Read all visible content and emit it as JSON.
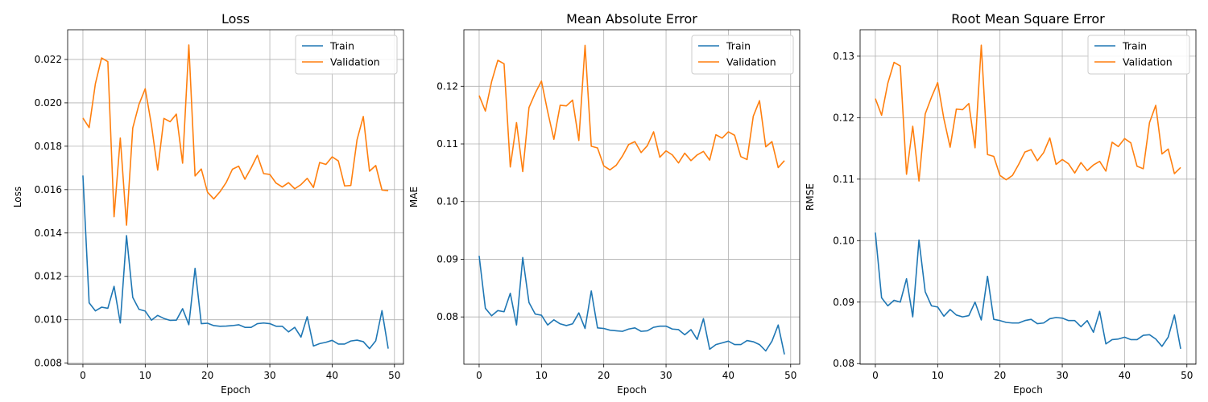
{
  "chart_data": [
    {
      "type": "line",
      "title": "Loss",
      "xlabel": "Epoch",
      "ylabel": "Loss",
      "xlim": [
        -2.45,
        51.45
      ],
      "ylim": [
        0.00795,
        0.02337
      ],
      "xticks": [
        0,
        10,
        20,
        30,
        40,
        50
      ],
      "yticks": [
        0.008,
        0.01,
        0.012,
        0.014,
        0.016,
        0.018,
        0.02,
        0.022
      ],
      "ytick_labels": [
        "0.008",
        "0.010",
        "0.012",
        "0.014",
        "0.016",
        "0.018",
        "0.020",
        "0.022"
      ],
      "grid": true,
      "legend": "top-right",
      "series": [
        {
          "name": "Train",
          "color": "#1f77b4",
          "values": [
            0.01665,
            0.01078,
            0.01041,
            0.01058,
            0.01053,
            0.01154,
            0.00985,
            0.01388,
            0.01103,
            0.01048,
            0.0104,
            0.00998,
            0.0102,
            0.01006,
            0.00997,
            0.00998,
            0.01051,
            0.00977,
            0.01237,
            0.00982,
            0.00984,
            0.00973,
            0.0097,
            0.00971,
            0.00973,
            0.00977,
            0.00965,
            0.00965,
            0.00982,
            0.00985,
            0.00982,
            0.0097,
            0.0097,
            0.00944,
            0.00965,
            0.0092,
            0.01014,
            0.00879,
            0.0089,
            0.00896,
            0.00905,
            0.00888,
            0.00888,
            0.00902,
            0.00906,
            0.00899,
            0.00867,
            0.00903,
            0.01042,
            0.00867
          ]
        },
        {
          "name": "Validation",
          "color": "#ff7f0e",
          "values": [
            0.0193,
            0.01886,
            0.02088,
            0.02207,
            0.0219,
            0.01475,
            0.01838,
            0.01436,
            0.01884,
            0.01993,
            0.02065,
            0.01898,
            0.0169,
            0.01928,
            0.01913,
            0.01948,
            0.01722,
            0.02267,
            0.01663,
            0.01695,
            0.01588,
            0.01557,
            0.0159,
            0.01633,
            0.01694,
            0.01708,
            0.01648,
            0.017,
            0.01758,
            0.01674,
            0.0167,
            0.0163,
            0.01612,
            0.01632,
            0.01604,
            0.01623,
            0.01652,
            0.0161,
            0.01725,
            0.01716,
            0.01751,
            0.01732,
            0.01617,
            0.01619,
            0.0183,
            0.01937,
            0.01685,
            0.01711,
            0.01598,
            0.01595
          ]
        }
      ]
    },
    {
      "type": "line",
      "title": "Mean Absolute Error",
      "xlabel": "Epoch",
      "ylabel": "MAE",
      "xlim": [
        -2.45,
        51.45
      ],
      "ylim": [
        0.0718,
        0.1298
      ],
      "xticks": [
        0,
        10,
        20,
        30,
        40,
        50
      ],
      "yticks": [
        0.08,
        0.09,
        0.1,
        0.11,
        0.12
      ],
      "ytick_labels": [
        "0.08",
        "0.09",
        "0.10",
        "0.11",
        "0.12"
      ],
      "grid": true,
      "legend": "top-right",
      "series": [
        {
          "name": "Train",
          "color": "#1f77b4",
          "values": [
            0.0906,
            0.0815,
            0.0802,
            0.0811,
            0.0809,
            0.0841,
            0.0786,
            0.0903,
            0.0825,
            0.0805,
            0.0803,
            0.0786,
            0.0795,
            0.0788,
            0.0785,
            0.0788,
            0.0807,
            0.078,
            0.0845,
            0.0781,
            0.078,
            0.0777,
            0.0776,
            0.0775,
            0.0779,
            0.0781,
            0.0775,
            0.0776,
            0.0782,
            0.0784,
            0.0784,
            0.0779,
            0.0778,
            0.0769,
            0.0778,
            0.0761,
            0.0797,
            0.0744,
            0.0752,
            0.0755,
            0.0758,
            0.0752,
            0.0752,
            0.0759,
            0.0757,
            0.0752,
            0.0741,
            0.0758,
            0.0786,
            0.0735
          ]
        },
        {
          "name": "Validation",
          "color": "#ff7f0e",
          "values": [
            0.1184,
            0.1157,
            0.1208,
            0.1245,
            0.1239,
            0.106,
            0.1137,
            0.1052,
            0.1163,
            0.1188,
            0.1209,
            0.1156,
            0.1108,
            0.1167,
            0.1166,
            0.1176,
            0.1106,
            0.1271,
            0.1096,
            0.1093,
            0.1062,
            0.1055,
            0.1063,
            0.1079,
            0.1099,
            0.1104,
            0.1085,
            0.1097,
            0.1121,
            0.1077,
            0.1088,
            0.1081,
            0.1067,
            0.1084,
            0.1071,
            0.1081,
            0.1087,
            0.1072,
            0.1116,
            0.111,
            0.1121,
            0.1115,
            0.1078,
            0.1073,
            0.1148,
            0.1175,
            0.1095,
            0.1104,
            0.1059,
            0.1071
          ]
        }
      ]
    },
    {
      "type": "line",
      "title": "Root Mean Square Error",
      "xlabel": "Epoch",
      "ylabel": "RMSE",
      "xlim": [
        -2.45,
        51.45
      ],
      "ylim": [
        0.0799,
        0.1343
      ],
      "xticks": [
        0,
        10,
        20,
        30,
        40,
        50
      ],
      "yticks": [
        0.08,
        0.09,
        0.1,
        0.11,
        0.12,
        0.13
      ],
      "ytick_labels": [
        "0.08",
        "0.09",
        "0.10",
        "0.11",
        "0.12",
        "0.13"
      ],
      "grid": true,
      "legend": "top-right",
      "series": [
        {
          "name": "Train",
          "color": "#1f77b4",
          "values": [
            0.1013,
            0.0907,
            0.0894,
            0.0903,
            0.09,
            0.0938,
            0.0876,
            0.1001,
            0.0917,
            0.0894,
            0.0892,
            0.0877,
            0.0888,
            0.0879,
            0.0876,
            0.0878,
            0.09,
            0.0871,
            0.0942,
            0.0872,
            0.087,
            0.0867,
            0.0866,
            0.0866,
            0.087,
            0.0872,
            0.0865,
            0.0866,
            0.0873,
            0.0875,
            0.0874,
            0.087,
            0.087,
            0.086,
            0.087,
            0.0851,
            0.0885,
            0.0832,
            0.0839,
            0.084,
            0.0843,
            0.0839,
            0.0839,
            0.0846,
            0.0847,
            0.084,
            0.0828,
            0.0843,
            0.0879,
            0.0824
          ]
        },
        {
          "name": "Validation",
          "color": "#ff7f0e",
          "values": [
            0.1231,
            0.1204,
            0.1256,
            0.129,
            0.1284,
            0.1108,
            0.1186,
            0.1097,
            0.1206,
            0.1233,
            0.1257,
            0.1198,
            0.1152,
            0.1214,
            0.1213,
            0.1223,
            0.1151,
            0.1318,
            0.114,
            0.1137,
            0.1106,
            0.1099,
            0.1106,
            0.1124,
            0.1144,
            0.1148,
            0.113,
            0.1143,
            0.1167,
            0.1124,
            0.1132,
            0.1125,
            0.111,
            0.1127,
            0.1114,
            0.1123,
            0.1129,
            0.1113,
            0.116,
            0.1153,
            0.1166,
            0.1159,
            0.1121,
            0.1117,
            0.1192,
            0.122,
            0.1141,
            0.1149,
            0.1109,
            0.1119
          ]
        }
      ]
    }
  ]
}
